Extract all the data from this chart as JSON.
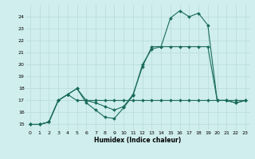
{
  "xlabel": "Humidex (Indice chaleur)",
  "bg_color": "#cfeeed",
  "grid_color": "#b8dada",
  "line_color": "#1a6b5a",
  "xlim": [
    -0.5,
    23.5
  ],
  "ylim": [
    14.5,
    25.0
  ],
  "xticks": [
    0,
    1,
    2,
    3,
    4,
    5,
    6,
    7,
    8,
    9,
    10,
    11,
    12,
    13,
    14,
    15,
    16,
    17,
    18,
    19,
    20,
    21,
    22,
    23
  ],
  "yticks": [
    15,
    16,
    17,
    18,
    19,
    20,
    21,
    22,
    23,
    24
  ],
  "series1_x": [
    0,
    1,
    2,
    3,
    4,
    5,
    6,
    7,
    8,
    9,
    10,
    11,
    12,
    13,
    14,
    15,
    16,
    17,
    18,
    19,
    20,
    21,
    22,
    23
  ],
  "series1_y": [
    15,
    15,
    15.2,
    17,
    17.5,
    18,
    17,
    16.8,
    16.5,
    16.2,
    16.5,
    17.5,
    19.8,
    21.5,
    21.5,
    23.9,
    24.5,
    24,
    24.3,
    23.3,
    17,
    17,
    16.8,
    17
  ],
  "series2_x": [
    0,
    1,
    2,
    3,
    4,
    5,
    6,
    7,
    8,
    9,
    10,
    11,
    12,
    13,
    14,
    15,
    16,
    17,
    18,
    19,
    20,
    21,
    22,
    23
  ],
  "series2_y": [
    15,
    15,
    15.2,
    17,
    17.5,
    17,
    17,
    17,
    17,
    17,
    17,
    17,
    17,
    17,
    17,
    17,
    17,
    17,
    17,
    17,
    17,
    17,
    17,
    17
  ],
  "series3_x": [
    0,
    1,
    2,
    3,
    4,
    5,
    6,
    7,
    8,
    9,
    10,
    11,
    12,
    13,
    14,
    15,
    16,
    17,
    18,
    19,
    20,
    21,
    22,
    23
  ],
  "series3_y": [
    15,
    15,
    15.2,
    17,
    17.5,
    18,
    16.8,
    16.2,
    15.6,
    15.5,
    16.4,
    17.4,
    20.0,
    21.3,
    21.5,
    21.5,
    21.5,
    21.5,
    21.5,
    21.5,
    17,
    17,
    16.8,
    17
  ]
}
